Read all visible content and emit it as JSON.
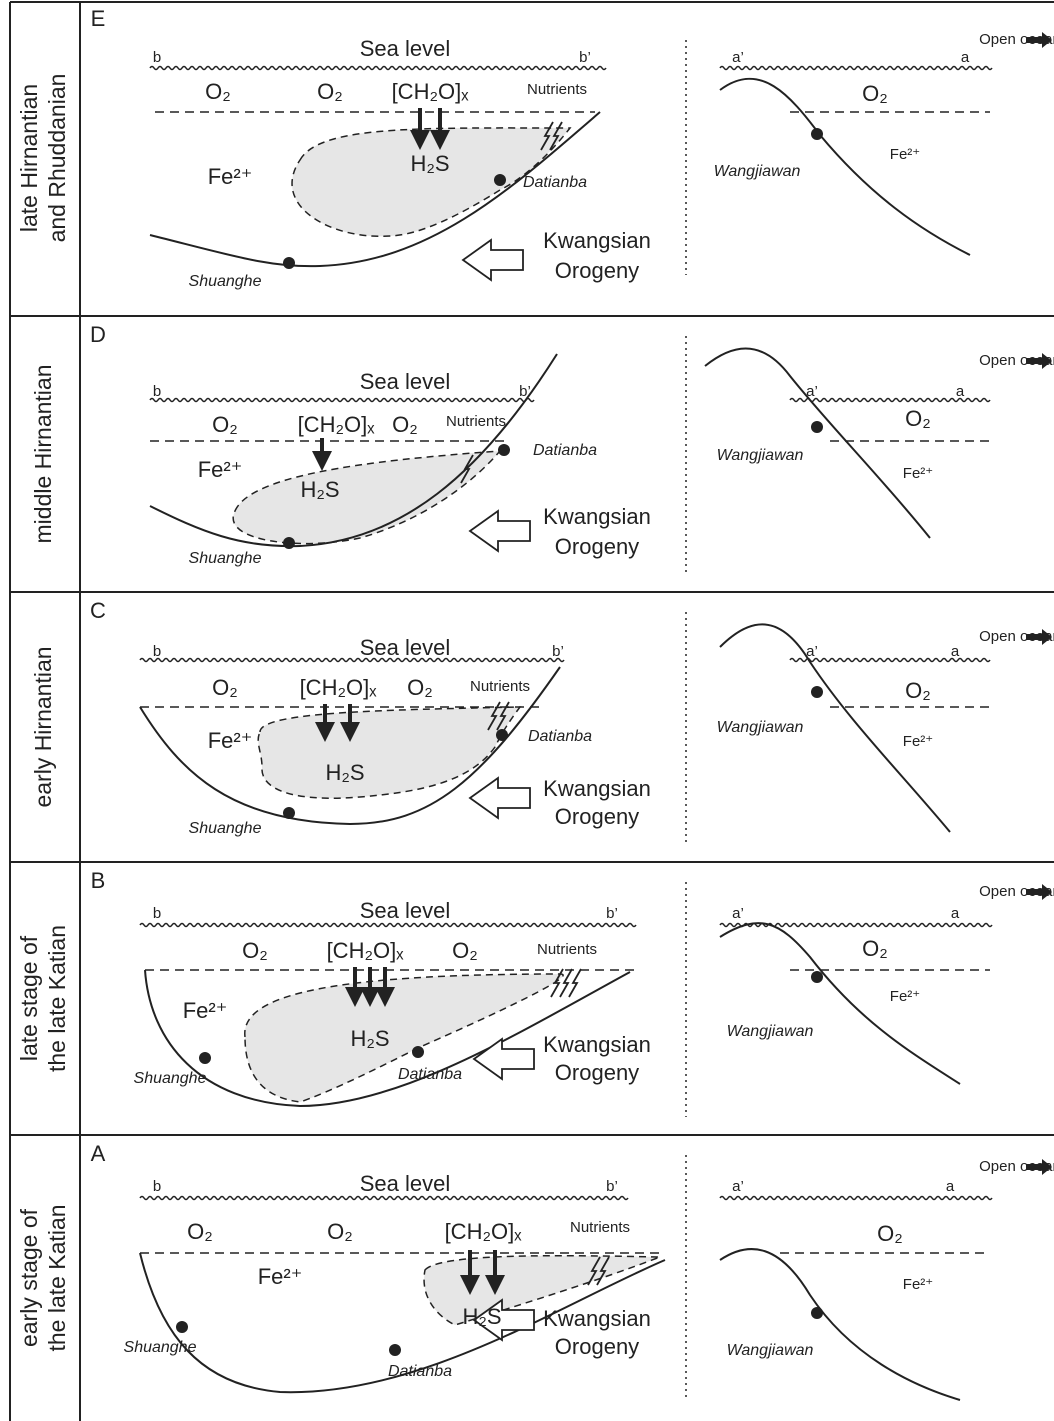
{
  "panels": [
    {
      "letter": "E",
      "stage": [
        "late Hirnantian",
        "and Rhuddanian"
      ],
      "left": {
        "b": "b",
        "sea_level": "Sea level",
        "b_prime": "b’",
        "o2_labels": [
          "O₂",
          "O₂"
        ],
        "ch2o": "[CH₂O]ₓ",
        "nutrients": "Nutrients",
        "fe": "Fe²⁺",
        "h2s": "H₂S",
        "sites": [
          "Datianba",
          "Shuanghe"
        ],
        "orogeny": [
          "Kwangsian",
          "Orogeny"
        ]
      },
      "right": {
        "open_ocean": "Open ocean",
        "a_prime": "a’",
        "a": "a",
        "o2": "O₂",
        "fe": "Fe²⁺",
        "site": "Wangjiawan"
      }
    },
    {
      "letter": "D",
      "stage": [
        "middle Hirnantian"
      ],
      "left": {
        "b": "b",
        "sea_level": "Sea level",
        "b_prime": "b’",
        "o2_labels": [
          "O₂",
          "O₂"
        ],
        "ch2o": "[CH₂O]ₓ",
        "nutrients": "Nutrients",
        "fe": "Fe²⁺",
        "h2s": "H₂S",
        "sites": [
          "Datianba",
          "Shuanghe"
        ],
        "orogeny": [
          "Kwangsian",
          "Orogeny"
        ]
      },
      "right": {
        "open_ocean": "Open ocean",
        "a_prime": "a’",
        "a": "a",
        "o2": "O₂",
        "fe": "Fe²⁺",
        "site": "Wangjiawan"
      }
    },
    {
      "letter": "C",
      "stage": [
        "early Hirnantian"
      ],
      "left": {
        "b": "b",
        "sea_level": "Sea level",
        "b_prime": "b’",
        "o2_labels": [
          "O₂",
          "O₂"
        ],
        "ch2o": "[CH₂O]ₓ",
        "nutrients": "Nutrients",
        "fe": "Fe²⁺",
        "h2s": "H₂S",
        "sites": [
          "Datianba",
          "Shuanghe"
        ],
        "orogeny": [
          "Kwangsian",
          "Orogeny"
        ]
      },
      "right": {
        "open_ocean": "Open ocean",
        "a_prime": "a’",
        "a": "a",
        "o2": "O₂",
        "fe": "Fe²⁺",
        "site": "Wangjiawan"
      }
    },
    {
      "letter": "B",
      "stage": [
        "late stage of",
        "the late Katian"
      ],
      "left": {
        "b": "b",
        "sea_level": "Sea level",
        "b_prime": "b’",
        "o2_labels": [
          "O₂",
          "O₂"
        ],
        "ch2o": "[CH₂O]ₓ",
        "nutrients": "Nutrients",
        "fe": "Fe²⁺",
        "h2s": "H₂S",
        "sites": [
          "Datianba",
          "Shuanghe"
        ],
        "orogeny": [
          "Kwangsian",
          "Orogeny"
        ]
      },
      "right": {
        "open_ocean": "Open ocean",
        "a_prime": "a’",
        "a": "a",
        "o2": "O₂",
        "fe": "Fe²⁺",
        "site": "Wangjiawan"
      }
    },
    {
      "letter": "A",
      "stage": [
        "early stage of",
        "the late Katian"
      ],
      "left": {
        "b": "b",
        "sea_level": "Sea level",
        "b_prime": "b’",
        "o2_labels": [
          "O₂",
          "O₂"
        ],
        "ch2o": "[CH₂O]ₓ",
        "nutrients": "Nutrients",
        "fe": "Fe²⁺",
        "h2s": "H₂S",
        "sites": [
          "Datianba",
          "Shuanghe"
        ],
        "orogeny": [
          "Kwangsian",
          "Orogeny"
        ]
      },
      "right": {
        "open_ocean": "Open ocean",
        "a_prime": "a’",
        "a": "a",
        "o2": "O₂",
        "fe": "Fe²⁺",
        "site": "Wangjiawan"
      }
    }
  ]
}
